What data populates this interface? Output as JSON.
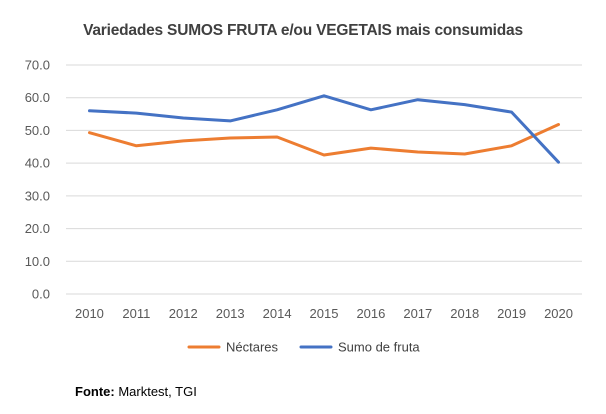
{
  "chart_data": {
    "type": "line",
    "title": "Variedades SUMOS FRUTA e/ou VEGETAIS mais consumidas",
    "categories": [
      "2010",
      "2011",
      "2012",
      "2013",
      "2014",
      "2015",
      "2016",
      "2017",
      "2018",
      "2019",
      "2020"
    ],
    "ylim": [
      0,
      70
    ],
    "yticks": [
      "0.0",
      "10.0",
      "20.0",
      "30.0",
      "40.0",
      "50.0",
      "60.0",
      "70.0"
    ],
    "grid": true,
    "legend_position": "bottom",
    "series": [
      {
        "name": "Néctares",
        "color": "#ED7D31",
        "values": [
          49.3,
          45.3,
          46.8,
          47.7,
          48.0,
          42.5,
          44.6,
          43.4,
          42.8,
          45.3,
          51.8
        ]
      },
      {
        "name": "Sumo de fruta",
        "color": "#4472C4",
        "values": [
          56.0,
          55.3,
          53.8,
          52.9,
          56.3,
          60.6,
          56.3,
          59.4,
          57.9,
          55.6,
          40.3
        ]
      }
    ]
  },
  "source": {
    "label": "Fonte:",
    "text": " Marktest, TGI"
  }
}
